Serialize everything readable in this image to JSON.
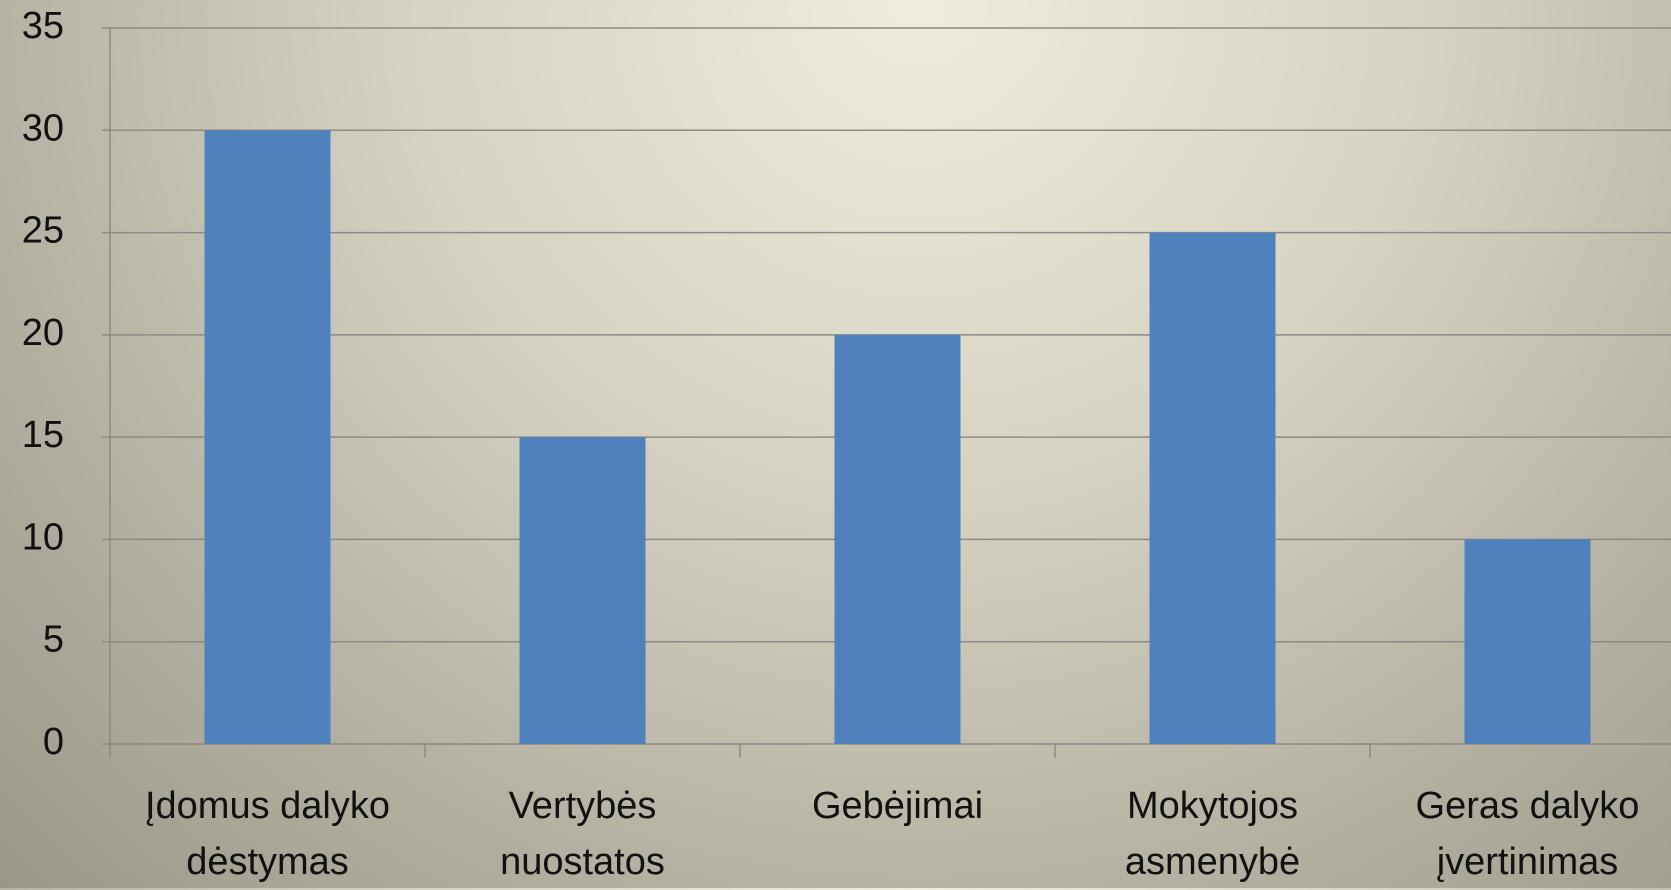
{
  "chart_data": {
    "type": "bar",
    "categories": [
      "Įdomus dalyko dėstymas",
      "Vertybės nuostatos",
      "Gebėjimai",
      "Mokytojos asmenybė",
      "Geras dalyko įvertinimas"
    ],
    "values": [
      30,
      15,
      20,
      25,
      10
    ],
    "color": "#4f81bd",
    "ylim": [
      0,
      35
    ],
    "yticks": [
      0,
      5,
      10,
      15,
      20,
      25,
      30,
      35
    ],
    "grid": true
  }
}
